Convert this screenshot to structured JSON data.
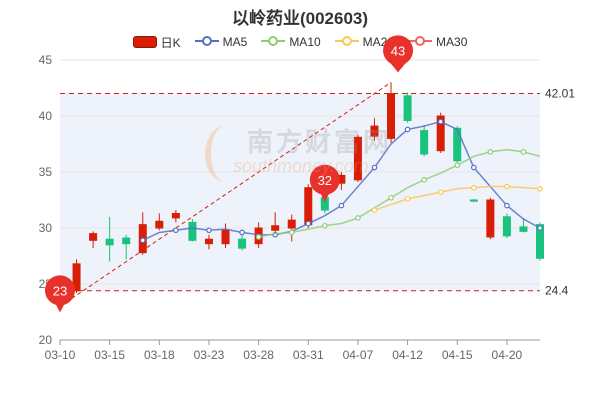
{
  "chart_data": {
    "type": "candlestick",
    "title": "以岭药业(002603)",
    "legend": [
      {
        "name": "日K",
        "color": "#d81e06",
        "fill": "#d81e06",
        "kind": "k"
      },
      {
        "name": "MA5",
        "color": "#5470c6",
        "kind": "line"
      },
      {
        "name": "MA10",
        "color": "#91cc75",
        "kind": "line"
      },
      {
        "name": "MA20",
        "color": "#fac858",
        "kind": "line"
      },
      {
        "name": "MA30",
        "color": "#ee6666",
        "kind": "line"
      }
    ],
    "legend_placement": "top-center",
    "ylim": [
      20,
      45
    ],
    "yticks": [
      20,
      25,
      30,
      35,
      40,
      45
    ],
    "x_tick_labels": [
      "03-10",
      "03-15",
      "03-18",
      "03-23",
      "03-28",
      "03-31",
      "04-07",
      "04-12",
      "04-15",
      "04-20"
    ],
    "x_tick_positions": [
      0,
      3,
      6,
      9,
      12,
      15,
      18,
      21,
      24,
      27
    ],
    "up_color": "#d81e06",
    "down_color": "#19c37d",
    "candles": [
      {
        "date": "03-10",
        "open": 24.6,
        "close": 23.4,
        "high": 24.8,
        "low": 23.0
      },
      {
        "date": "03-11",
        "open": 24.4,
        "close": 26.8,
        "high": 27.2,
        "low": 24.2
      },
      {
        "date": "03-14",
        "open": 28.9,
        "close": 29.5,
        "high": 29.7,
        "low": 28.2
      },
      {
        "date": "03-15",
        "open": 29.0,
        "close": 28.5,
        "high": 31.0,
        "low": 27.0
      },
      {
        "date": "03-16",
        "open": 29.1,
        "close": 28.6,
        "high": 29.4,
        "low": 27.2
      },
      {
        "date": "03-17",
        "open": 27.8,
        "close": 30.3,
        "high": 31.4,
        "low": 27.6
      },
      {
        "date": "03-18",
        "open": 30.0,
        "close": 30.6,
        "high": 31.3,
        "low": 29.8
      },
      {
        "date": "03-21",
        "open": 30.9,
        "close": 31.3,
        "high": 31.6,
        "low": 30.5
      },
      {
        "date": "03-22",
        "open": 30.5,
        "close": 28.9,
        "high": 30.8,
        "low": 28.8
      },
      {
        "date": "03-23",
        "open": 28.6,
        "close": 29.0,
        "high": 29.4,
        "low": 28.1
      },
      {
        "date": "03-24",
        "open": 28.6,
        "close": 29.8,
        "high": 30.4,
        "low": 28.2
      },
      {
        "date": "03-25",
        "open": 29.0,
        "close": 28.2,
        "high": 29.4,
        "low": 28.0
      },
      {
        "date": "03-28",
        "open": 28.6,
        "close": 30.0,
        "high": 30.5,
        "low": 28.2
      },
      {
        "date": "03-29",
        "open": 29.8,
        "close": 30.2,
        "high": 31.4,
        "low": 29.6
      },
      {
        "date": "03-30",
        "open": 30.0,
        "close": 30.7,
        "high": 31.2,
        "low": 28.8
      },
      {
        "date": "03-31",
        "open": 30.3,
        "close": 33.6,
        "high": 33.9,
        "low": 30.0
      },
      {
        "date": "04-01",
        "open": 32.7,
        "close": 31.6,
        "high": 33.0,
        "low": 31.3
      },
      {
        "date": "04-06",
        "open": 34.0,
        "close": 34.7,
        "high": 35.0,
        "low": 33.4
      },
      {
        "date": "04-07",
        "open": 34.3,
        "close": 38.1,
        "high": 38.3,
        "low": 34.1
      },
      {
        "date": "04-08",
        "open": 38.2,
        "close": 39.1,
        "high": 39.8,
        "low": 37.8
      },
      {
        "date": "04-11",
        "open": 38.0,
        "close": 42.0,
        "high": 43.0,
        "low": 37.6
      },
      {
        "date": "04-12",
        "open": 41.8,
        "close": 39.6,
        "high": 42.1,
        "low": 39.4
      },
      {
        "date": "04-13",
        "open": 38.7,
        "close": 36.6,
        "high": 39.2,
        "low": 36.4
      },
      {
        "date": "04-14",
        "open": 36.9,
        "close": 40.0,
        "high": 40.3,
        "low": 36.7
      },
      {
        "date": "04-15",
        "open": 38.9,
        "close": 36.0,
        "high": 39.1,
        "low": 35.8
      },
      {
        "date": "04-18",
        "open": 32.5,
        "close": 32.4,
        "high": 32.6,
        "low": 32.3
      },
      {
        "date": "04-19",
        "open": 29.2,
        "close": 32.5,
        "high": 32.7,
        "low": 29.0
      },
      {
        "date": "04-20",
        "open": 31.0,
        "close": 29.3,
        "high": 31.3,
        "low": 29.1
      },
      {
        "date": "04-21",
        "open": 30.1,
        "close": 29.7,
        "high": 30.9,
        "low": 29.6
      },
      {
        "date": "04-22",
        "open": 30.3,
        "close": 27.3,
        "high": 30.5,
        "low": 27.1
      }
    ],
    "ma5": [
      null,
      null,
      null,
      null,
      null,
      28.9,
      29.6,
      29.8,
      30.0,
      29.8,
      29.9,
      29.6,
      29.4,
      29.4,
      29.7,
      30.4,
      31.1,
      32.0,
      33.7,
      35.4,
      37.5,
      38.8,
      39.1,
      39.5,
      38.8,
      35.4,
      33.7,
      32.0,
      30.8,
      30.0
    ],
    "ma10": [
      null,
      null,
      null,
      null,
      null,
      null,
      null,
      null,
      null,
      null,
      null,
      null,
      29.2,
      29.5,
      29.6,
      29.9,
      30.2,
      30.4,
      30.9,
      31.8,
      32.7,
      33.6,
      34.3,
      34.9,
      35.6,
      36.4,
      36.8,
      37.0,
      36.8,
      36.4
    ],
    "ma20": [
      null,
      null,
      null,
      null,
      null,
      null,
      null,
      null,
      null,
      null,
      null,
      null,
      null,
      null,
      null,
      null,
      null,
      null,
      null,
      31.6,
      32.1,
      32.6,
      32.9,
      33.2,
      33.5,
      33.6,
      33.7,
      33.7,
      33.6,
      33.5
    ],
    "annotations": [
      {
        "label": "23",
        "ref": "low"
      },
      {
        "label": "32",
        "ref": "mid"
      },
      {
        "label": "43",
        "ref": "high"
      }
    ],
    "hlines": [
      {
        "value": 42.01,
        "label": "42.01"
      },
      {
        "value": 24.4,
        "label": "24.4"
      }
    ],
    "band_color": "#eef2fb"
  },
  "watermark": {
    "main": "南方财富网",
    "sub": "southmoney.com"
  }
}
